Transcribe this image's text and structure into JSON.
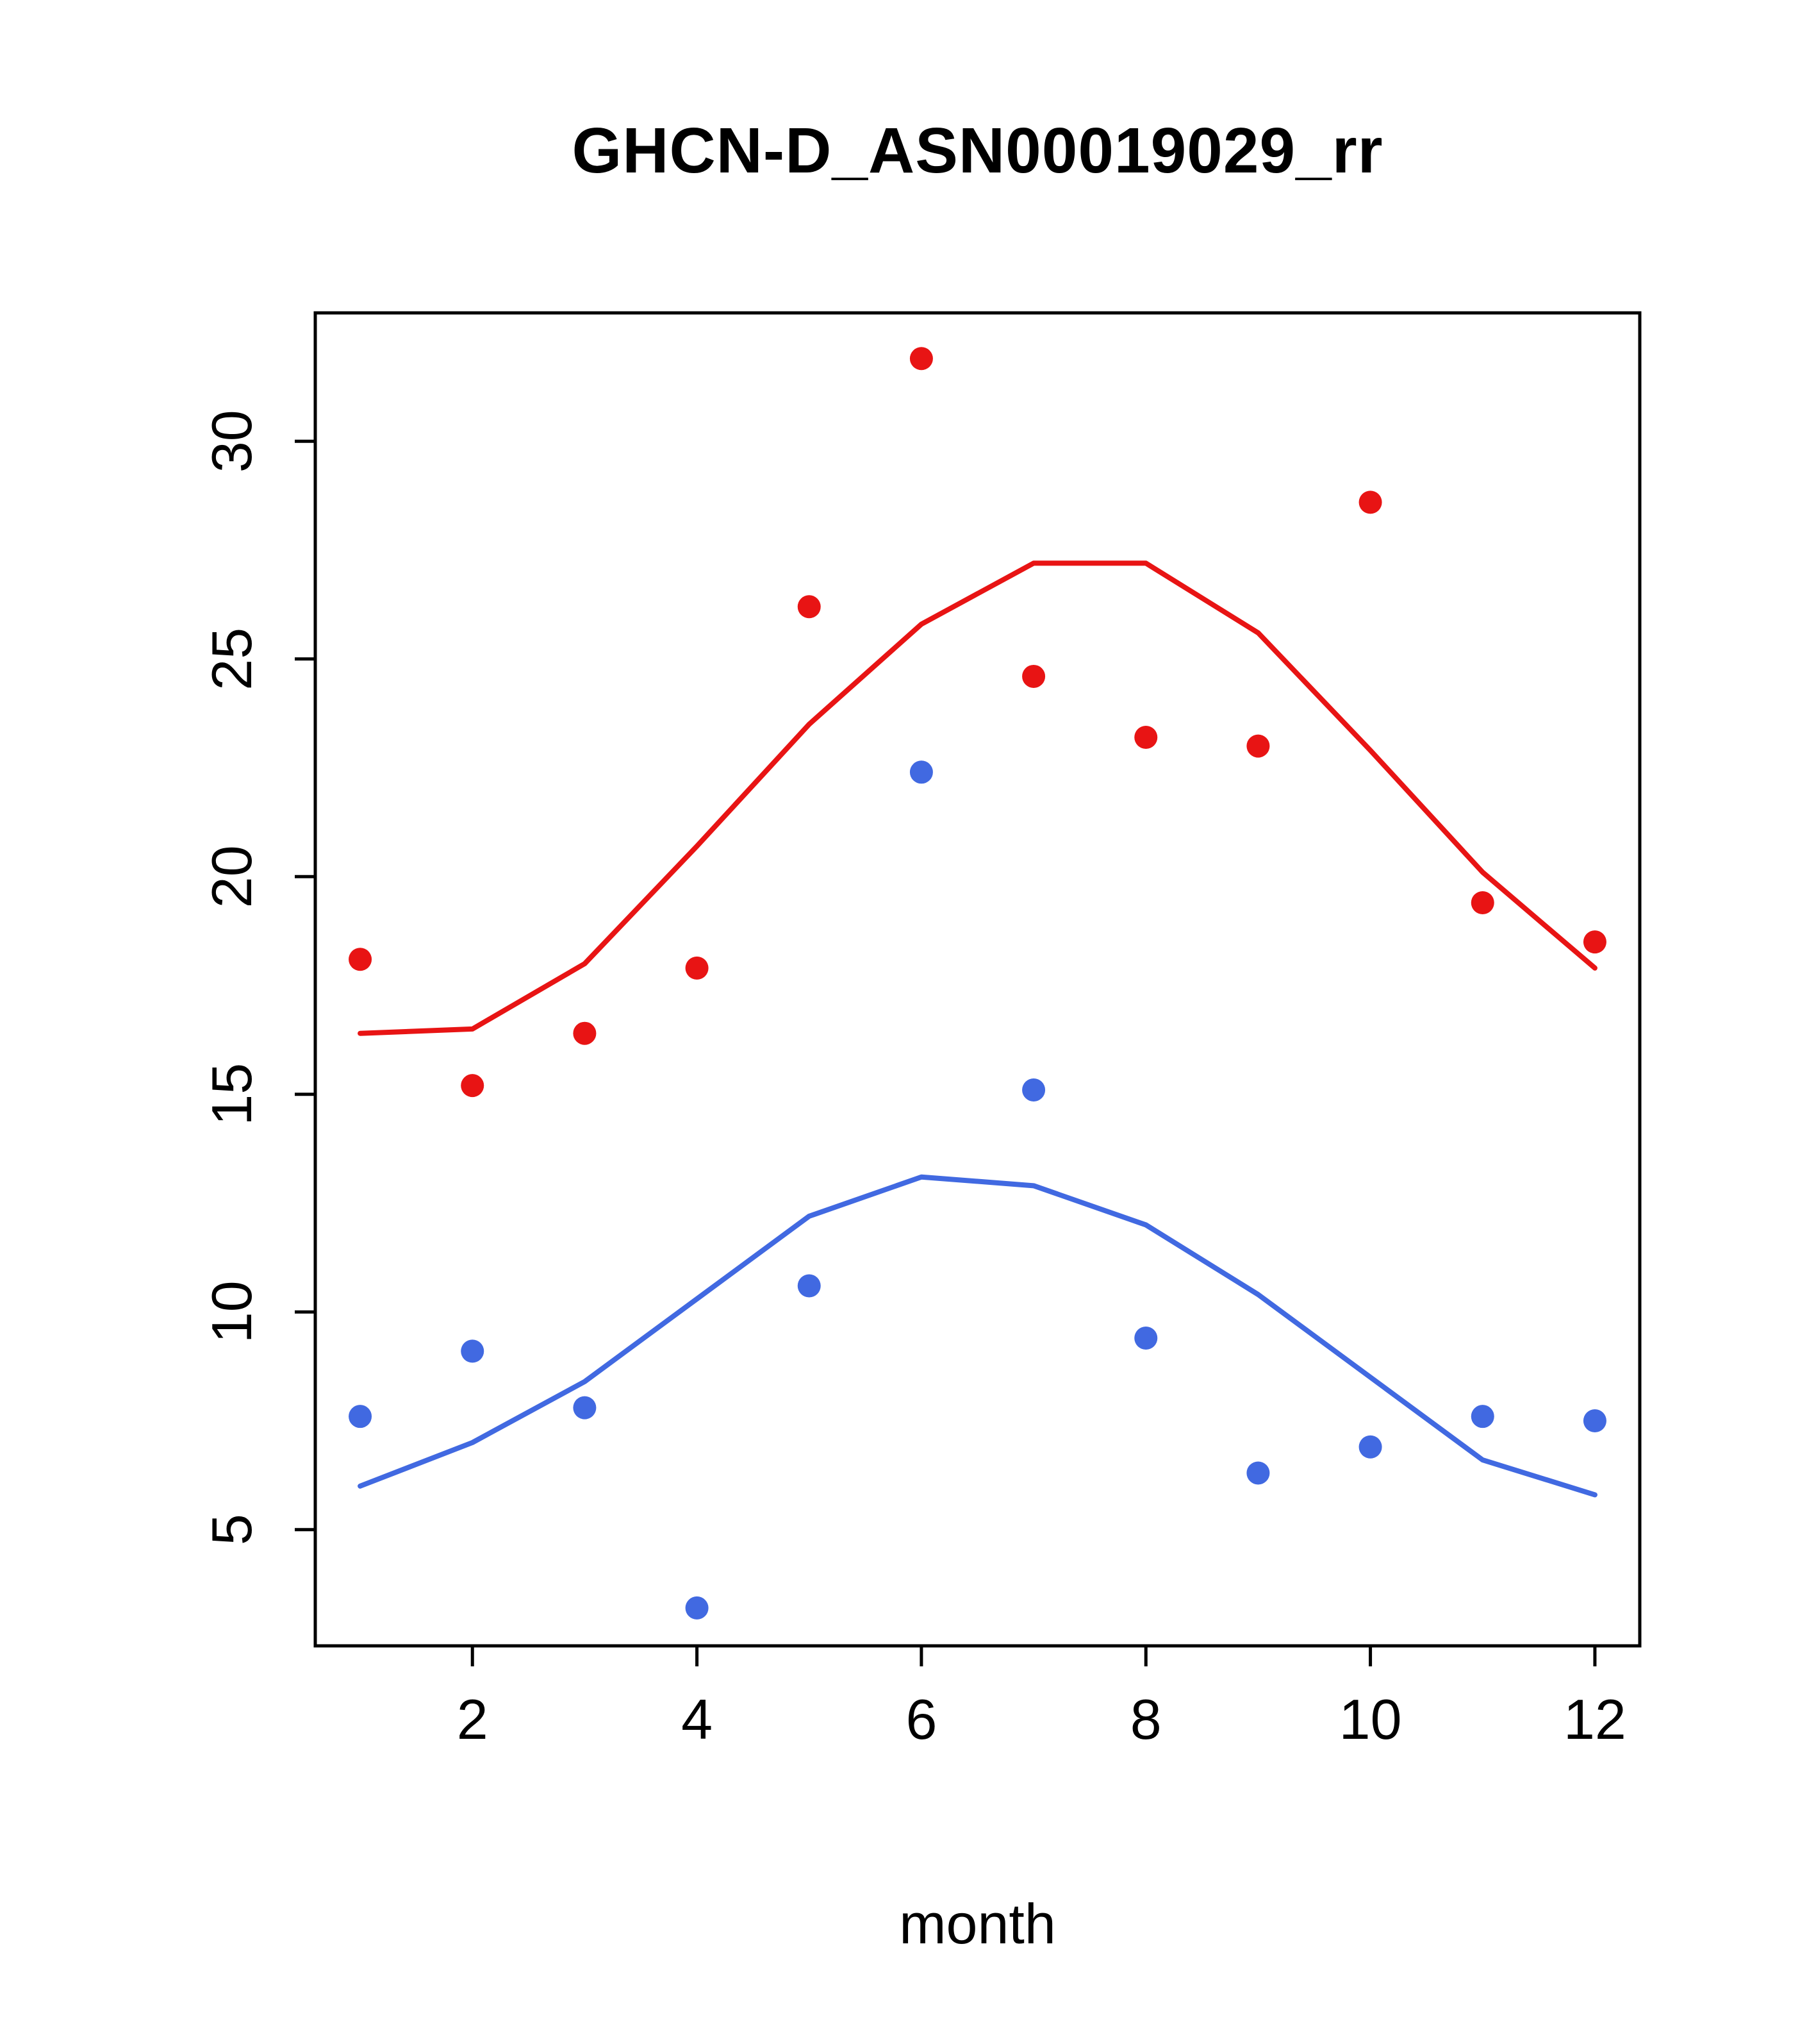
{
  "title": "GHCN-D_ASN00019029_rr",
  "chart_data": {
    "type": "scatter",
    "title": "GHCN-D_ASN00019029_rr",
    "xlabel": "month",
    "ylabel": "",
    "x": [
      1,
      2,
      3,
      4,
      5,
      6,
      7,
      8,
      9,
      10,
      11,
      12
    ],
    "xticks": [
      2,
      4,
      6,
      8,
      10,
      12
    ],
    "yticks": [
      5,
      10,
      15,
      20,
      25,
      30
    ],
    "xlim": [
      0.6,
      12.4
    ],
    "ylim": [
      2.33,
      32.95
    ],
    "grid": false,
    "legend": "none",
    "colors": {
      "upper": "#e81414",
      "lower": "#4169e1"
    },
    "series": [
      {
        "name": "upper-line",
        "type": "line",
        "color": "#e81414",
        "values": [
          16.4,
          16.5,
          18.0,
          20.7,
          23.5,
          25.8,
          27.2,
          27.2,
          25.6,
          22.9,
          20.1,
          17.9
        ]
      },
      {
        "name": "lower-line",
        "type": "line",
        "color": "#4169e1",
        "values": [
          6.0,
          7.0,
          8.4,
          10.3,
          12.2,
          13.1,
          12.9,
          12.0,
          10.4,
          8.5,
          6.6,
          5.8
        ]
      },
      {
        "name": "upper-points",
        "type": "points",
        "color": "#e81414",
        "values": [
          18.1,
          15.2,
          16.4,
          17.9,
          26.2,
          31.9,
          24.6,
          23.2,
          23.0,
          28.6,
          19.4,
          18.5
        ]
      },
      {
        "name": "lower-points",
        "type": "points",
        "color": "#4169e1",
        "values": [
          7.6,
          9.1,
          7.8,
          3.2,
          10.6,
          22.4,
          15.1,
          9.4,
          6.3,
          6.9,
          7.6,
          7.5
        ]
      }
    ]
  }
}
